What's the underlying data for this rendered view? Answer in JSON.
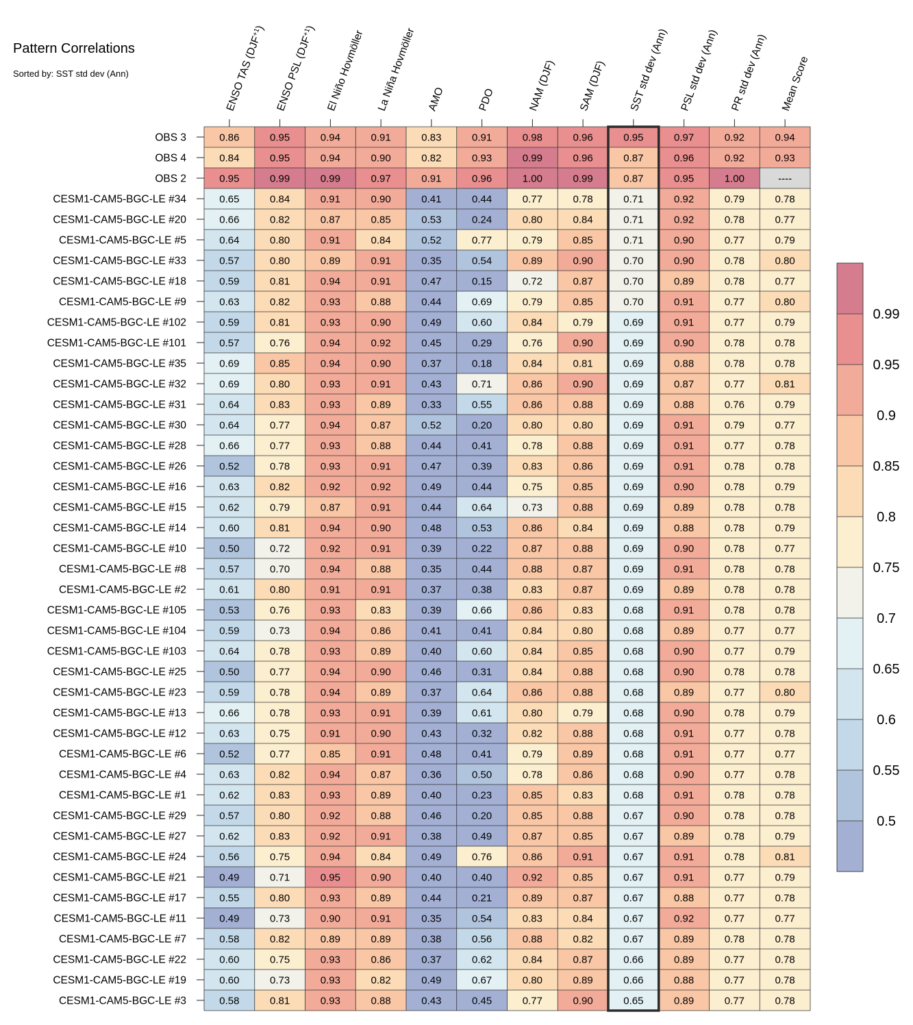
{
  "chart_data": {
    "type": "heatmap",
    "title": "Pattern Correlations",
    "subtitle": "Sorted by: SST std dev (Ann)",
    "highlighted_column": "SST std dev (Ann)",
    "columns": [
      {
        "pre": "ENSO TAS (DJF",
        "sup": "+1",
        "post": ")"
      },
      {
        "pre": "ENSO PSL (DJF",
        "sup": "+1",
        "post": ")"
      },
      {
        "pre": "El Niño Hovmöller",
        "sup": "",
        "post": ""
      },
      {
        "pre": "La Niña Hovmöller",
        "sup": "",
        "post": ""
      },
      {
        "pre": "AMO",
        "sup": "",
        "post": ""
      },
      {
        "pre": "PDO",
        "sup": "",
        "post": ""
      },
      {
        "pre": "NAM (DJF)",
        "sup": "",
        "post": ""
      },
      {
        "pre": "SAM (DJF)",
        "sup": "",
        "post": ""
      },
      {
        "pre": "SST std dev (Ann)",
        "sup": "",
        "post": ""
      },
      {
        "pre": "PSL std dev (Ann)",
        "sup": "",
        "post": ""
      },
      {
        "pre": "PR std dev (Ann)",
        "sup": "",
        "post": ""
      },
      {
        "pre": "Mean Score",
        "sup": "",
        "post": ""
      }
    ],
    "rows": [
      {
        "label": "OBS 3",
        "values": [
          "0.86",
          "0.95",
          "0.94",
          "0.91",
          "0.83",
          "0.91",
          "0.98",
          "0.96",
          "0.95",
          "0.97",
          "0.92",
          "0.94"
        ]
      },
      {
        "label": "OBS 4",
        "values": [
          "0.84",
          "0.95",
          "0.94",
          "0.90",
          "0.82",
          "0.93",
          "0.99",
          "0.96",
          "0.87",
          "0.96",
          "0.92",
          "0.93"
        ]
      },
      {
        "label": "OBS 2",
        "values": [
          "0.95",
          "0.99",
          "0.99",
          "0.97",
          "0.91",
          "0.96",
          "1.00",
          "0.99",
          "0.87",
          "0.95",
          "1.00",
          "----"
        ]
      },
      {
        "label": "CESM1-CAM5-BGC-LE #34",
        "values": [
          "0.65",
          "0.84",
          "0.91",
          "0.90",
          "0.41",
          "0.44",
          "0.77",
          "0.78",
          "0.71",
          "0.92",
          "0.79",
          "0.78"
        ]
      },
      {
        "label": "CESM1-CAM5-BGC-LE #20",
        "values": [
          "0.66",
          "0.82",
          "0.87",
          "0.85",
          "0.53",
          "0.24",
          "0.80",
          "0.84",
          "0.71",
          "0.92",
          "0.78",
          "0.77"
        ]
      },
      {
        "label": "CESM1-CAM5-BGC-LE #5",
        "values": [
          "0.64",
          "0.80",
          "0.91",
          "0.84",
          "0.52",
          "0.77",
          "0.79",
          "0.85",
          "0.71",
          "0.90",
          "0.77",
          "0.79"
        ]
      },
      {
        "label": "CESM1-CAM5-BGC-LE #33",
        "values": [
          "0.57",
          "0.80",
          "0.89",
          "0.91",
          "0.35",
          "0.54",
          "0.89",
          "0.90",
          "0.70",
          "0.90",
          "0.78",
          "0.80"
        ]
      },
      {
        "label": "CESM1-CAM5-BGC-LE #18",
        "values": [
          "0.59",
          "0.81",
          "0.94",
          "0.91",
          "0.47",
          "0.15",
          "0.72",
          "0.87",
          "0.70",
          "0.89",
          "0.78",
          "0.77"
        ]
      },
      {
        "label": "CESM1-CAM5-BGC-LE #9",
        "values": [
          "0.63",
          "0.82",
          "0.93",
          "0.88",
          "0.44",
          "0.69",
          "0.79",
          "0.85",
          "0.70",
          "0.91",
          "0.77",
          "0.80"
        ]
      },
      {
        "label": "CESM1-CAM5-BGC-LE #102",
        "values": [
          "0.59",
          "0.81",
          "0.93",
          "0.90",
          "0.49",
          "0.60",
          "0.84",
          "0.79",
          "0.69",
          "0.91",
          "0.77",
          "0.79"
        ]
      },
      {
        "label": "CESM1-CAM5-BGC-LE #101",
        "values": [
          "0.57",
          "0.76",
          "0.94",
          "0.92",
          "0.45",
          "0.29",
          "0.76",
          "0.90",
          "0.69",
          "0.90",
          "0.78",
          "0.78"
        ]
      },
      {
        "label": "CESM1-CAM5-BGC-LE #35",
        "values": [
          "0.69",
          "0.85",
          "0.94",
          "0.90",
          "0.37",
          "0.18",
          "0.84",
          "0.81",
          "0.69",
          "0.88",
          "0.78",
          "0.78"
        ]
      },
      {
        "label": "CESM1-CAM5-BGC-LE #32",
        "values": [
          "0.69",
          "0.80",
          "0.93",
          "0.91",
          "0.43",
          "0.71",
          "0.86",
          "0.90",
          "0.69",
          "0.87",
          "0.77",
          "0.81"
        ]
      },
      {
        "label": "CESM1-CAM5-BGC-LE #31",
        "values": [
          "0.64",
          "0.83",
          "0.93",
          "0.89",
          "0.33",
          "0.55",
          "0.86",
          "0.88",
          "0.69",
          "0.88",
          "0.76",
          "0.79"
        ]
      },
      {
        "label": "CESM1-CAM5-BGC-LE #30",
        "values": [
          "0.64",
          "0.77",
          "0.94",
          "0.87",
          "0.52",
          "0.20",
          "0.80",
          "0.80",
          "0.69",
          "0.91",
          "0.79",
          "0.77"
        ]
      },
      {
        "label": "CESM1-CAM5-BGC-LE #28",
        "values": [
          "0.66",
          "0.77",
          "0.93",
          "0.88",
          "0.44",
          "0.41",
          "0.78",
          "0.88",
          "0.69",
          "0.91",
          "0.77",
          "0.78"
        ]
      },
      {
        "label": "CESM1-CAM5-BGC-LE #26",
        "values": [
          "0.52",
          "0.78",
          "0.93",
          "0.91",
          "0.47",
          "0.39",
          "0.83",
          "0.86",
          "0.69",
          "0.91",
          "0.78",
          "0.78"
        ]
      },
      {
        "label": "CESM1-CAM5-BGC-LE #16",
        "values": [
          "0.63",
          "0.82",
          "0.92",
          "0.92",
          "0.49",
          "0.44",
          "0.75",
          "0.85",
          "0.69",
          "0.90",
          "0.78",
          "0.79"
        ]
      },
      {
        "label": "CESM1-CAM5-BGC-LE #15",
        "values": [
          "0.62",
          "0.79",
          "0.87",
          "0.91",
          "0.44",
          "0.64",
          "0.73",
          "0.88",
          "0.69",
          "0.89",
          "0.78",
          "0.78"
        ]
      },
      {
        "label": "CESM1-CAM5-BGC-LE #14",
        "values": [
          "0.60",
          "0.81",
          "0.94",
          "0.90",
          "0.48",
          "0.53",
          "0.86",
          "0.84",
          "0.69",
          "0.88",
          "0.78",
          "0.79"
        ]
      },
      {
        "label": "CESM1-CAM5-BGC-LE #10",
        "values": [
          "0.50",
          "0.72",
          "0.92",
          "0.91",
          "0.39",
          "0.22",
          "0.87",
          "0.88",
          "0.69",
          "0.90",
          "0.78",
          "0.77"
        ]
      },
      {
        "label": "CESM1-CAM5-BGC-LE #8",
        "values": [
          "0.57",
          "0.70",
          "0.94",
          "0.88",
          "0.35",
          "0.44",
          "0.88",
          "0.87",
          "0.69",
          "0.91",
          "0.78",
          "0.78"
        ]
      },
      {
        "label": "CESM1-CAM5-BGC-LE #2",
        "values": [
          "0.61",
          "0.80",
          "0.91",
          "0.91",
          "0.37",
          "0.38",
          "0.83",
          "0.87",
          "0.69",
          "0.89",
          "0.78",
          "0.78"
        ]
      },
      {
        "label": "CESM1-CAM5-BGC-LE #105",
        "values": [
          "0.53",
          "0.76",
          "0.93",
          "0.83",
          "0.39",
          "0.66",
          "0.86",
          "0.83",
          "0.68",
          "0.91",
          "0.78",
          "0.78"
        ]
      },
      {
        "label": "CESM1-CAM5-BGC-LE #104",
        "values": [
          "0.59",
          "0.73",
          "0.94",
          "0.86",
          "0.41",
          "0.41",
          "0.84",
          "0.80",
          "0.68",
          "0.89",
          "0.77",
          "0.77"
        ]
      },
      {
        "label": "CESM1-CAM5-BGC-LE #103",
        "values": [
          "0.64",
          "0.78",
          "0.93",
          "0.89",
          "0.40",
          "0.60",
          "0.84",
          "0.85",
          "0.68",
          "0.90",
          "0.77",
          "0.79"
        ]
      },
      {
        "label": "CESM1-CAM5-BGC-LE #25",
        "values": [
          "0.50",
          "0.77",
          "0.94",
          "0.90",
          "0.46",
          "0.31",
          "0.84",
          "0.88",
          "0.68",
          "0.90",
          "0.78",
          "0.78"
        ]
      },
      {
        "label": "CESM1-CAM5-BGC-LE #23",
        "values": [
          "0.59",
          "0.78",
          "0.94",
          "0.89",
          "0.37",
          "0.64",
          "0.86",
          "0.88",
          "0.68",
          "0.89",
          "0.77",
          "0.80"
        ]
      },
      {
        "label": "CESM1-CAM5-BGC-LE #13",
        "values": [
          "0.66",
          "0.78",
          "0.93",
          "0.91",
          "0.39",
          "0.61",
          "0.80",
          "0.79",
          "0.68",
          "0.90",
          "0.78",
          "0.79"
        ]
      },
      {
        "label": "CESM1-CAM5-BGC-LE #12",
        "values": [
          "0.63",
          "0.75",
          "0.91",
          "0.90",
          "0.43",
          "0.32",
          "0.82",
          "0.88",
          "0.68",
          "0.91",
          "0.77",
          "0.78"
        ]
      },
      {
        "label": "CESM1-CAM5-BGC-LE #6",
        "values": [
          "0.52",
          "0.77",
          "0.85",
          "0.91",
          "0.48",
          "0.41",
          "0.79",
          "0.89",
          "0.68",
          "0.91",
          "0.77",
          "0.77"
        ]
      },
      {
        "label": "CESM1-CAM5-BGC-LE #4",
        "values": [
          "0.63",
          "0.82",
          "0.94",
          "0.87",
          "0.36",
          "0.50",
          "0.78",
          "0.86",
          "0.68",
          "0.90",
          "0.77",
          "0.78"
        ]
      },
      {
        "label": "CESM1-CAM5-BGC-LE #1",
        "values": [
          "0.62",
          "0.83",
          "0.93",
          "0.89",
          "0.40",
          "0.23",
          "0.85",
          "0.83",
          "0.68",
          "0.91",
          "0.78",
          "0.78"
        ]
      },
      {
        "label": "CESM1-CAM5-BGC-LE #29",
        "values": [
          "0.57",
          "0.80",
          "0.92",
          "0.88",
          "0.46",
          "0.20",
          "0.85",
          "0.88",
          "0.67",
          "0.90",
          "0.78",
          "0.78"
        ]
      },
      {
        "label": "CESM1-CAM5-BGC-LE #27",
        "values": [
          "0.62",
          "0.83",
          "0.92",
          "0.91",
          "0.38",
          "0.49",
          "0.87",
          "0.85",
          "0.67",
          "0.89",
          "0.78",
          "0.79"
        ]
      },
      {
        "label": "CESM1-CAM5-BGC-LE #24",
        "values": [
          "0.56",
          "0.75",
          "0.94",
          "0.84",
          "0.49",
          "0.76",
          "0.86",
          "0.91",
          "0.67",
          "0.91",
          "0.78",
          "0.81"
        ]
      },
      {
        "label": "CESM1-CAM5-BGC-LE #21",
        "values": [
          "0.49",
          "0.71",
          "0.95",
          "0.90",
          "0.40",
          "0.40",
          "0.92",
          "0.85",
          "0.67",
          "0.91",
          "0.77",
          "0.79"
        ]
      },
      {
        "label": "CESM1-CAM5-BGC-LE #17",
        "values": [
          "0.55",
          "0.80",
          "0.93",
          "0.89",
          "0.44",
          "0.21",
          "0.89",
          "0.87",
          "0.67",
          "0.88",
          "0.77",
          "0.78"
        ]
      },
      {
        "label": "CESM1-CAM5-BGC-LE #11",
        "values": [
          "0.49",
          "0.73",
          "0.90",
          "0.91",
          "0.35",
          "0.54",
          "0.83",
          "0.84",
          "0.67",
          "0.92",
          "0.77",
          "0.77"
        ]
      },
      {
        "label": "CESM1-CAM5-BGC-LE #7",
        "values": [
          "0.58",
          "0.82",
          "0.89",
          "0.89",
          "0.38",
          "0.56",
          "0.88",
          "0.82",
          "0.67",
          "0.89",
          "0.78",
          "0.78"
        ]
      },
      {
        "label": "CESM1-CAM5-BGC-LE #22",
        "values": [
          "0.60",
          "0.75",
          "0.93",
          "0.86",
          "0.37",
          "0.62",
          "0.84",
          "0.87",
          "0.66",
          "0.89",
          "0.77",
          "0.78"
        ]
      },
      {
        "label": "CESM1-CAM5-BGC-LE #19",
        "values": [
          "0.60",
          "0.73",
          "0.93",
          "0.82",
          "0.49",
          "0.67",
          "0.80",
          "0.89",
          "0.66",
          "0.88",
          "0.77",
          "0.78"
        ]
      },
      {
        "label": "CESM1-CAM5-BGC-LE #3",
        "values": [
          "0.58",
          "0.81",
          "0.93",
          "0.88",
          "0.43",
          "0.45",
          "0.77",
          "0.90",
          "0.65",
          "0.89",
          "0.77",
          "0.78"
        ]
      }
    ],
    "colorbar": {
      "bounds": [
        0.5,
        0.55,
        0.6,
        0.65,
        0.7,
        0.75,
        0.8,
        0.85,
        0.9,
        0.95,
        0.99
      ],
      "tick_labels": [
        "0.5",
        "0.55",
        "0.6",
        "0.65",
        "0.7",
        "0.75",
        "0.8",
        "0.85",
        "0.9",
        "0.95",
        "0.99"
      ],
      "colors": [
        "#a3b0d4",
        "#b1c4de",
        "#c3d9e9",
        "#d3e6ef",
        "#e3f1f4",
        "#f2f2eb",
        "#fcefd0",
        "#fcdcb6",
        "#f9c7a6",
        "#f3ab99",
        "#e98f8f",
        "#d57d8e"
      ],
      "missing_color": "#d9d9d9"
    }
  }
}
